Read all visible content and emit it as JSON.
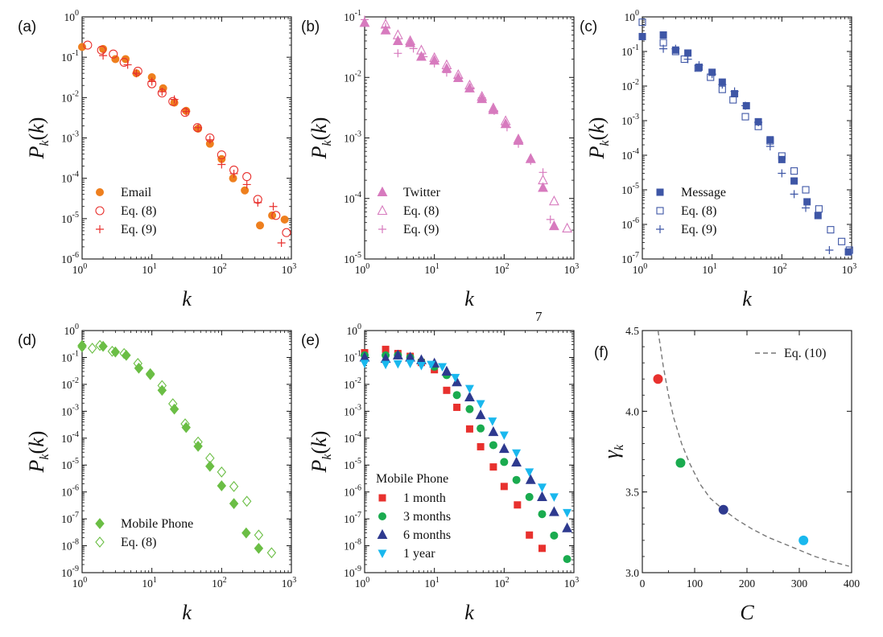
{
  "page_number": "7",
  "chart_data": [
    {
      "id": "a",
      "panel_label": "(a)",
      "type": "scatter",
      "xlabel": "k",
      "ylabel": "P_k(k)",
      "xscale": "log",
      "yscale": "log",
      "xlim": [
        1,
        1000
      ],
      "ylim": [
        1e-06,
        1
      ],
      "x_ticks": [
        [
          1,
          "0"
        ],
        [
          10,
          "1"
        ],
        [
          100,
          "2"
        ],
        [
          1000,
          "3"
        ]
      ],
      "y_ticks": [
        [
          1e-06,
          "-6"
        ],
        [
          1e-05,
          "-5"
        ],
        [
          0.0001,
          "-4"
        ],
        [
          0.001,
          "-3"
        ],
        [
          0.01,
          "-2"
        ],
        [
          0.1,
          "-1"
        ],
        [
          1,
          "0"
        ]
      ],
      "legend_position": "bottom-left",
      "series": [
        {
          "name": "Email",
          "marker": "circle-filled",
          "color": "#EE7F1E",
          "x": [
            1,
            2,
            3,
            4.2,
            6,
            10,
            14.5,
            21,
            31,
            46,
            68,
            100,
            146,
            215,
            355,
            530,
            800
          ],
          "y": [
            0.18,
            0.16,
            0.09,
            0.09,
            0.04,
            0.032,
            0.017,
            0.0075,
            0.0047,
            0.0017,
            0.00072,
            0.0003,
            0.0001,
            5e-05,
            6.8e-06,
            1.2e-05,
            9.5e-06
          ]
        },
        {
          "name": "Eq. (8)",
          "marker": "circle-open",
          "color": "#E8312E",
          "x": [
            1.2,
            1.9,
            2.8,
            4,
            6.3,
            10,
            14,
            20,
            30,
            45,
            68,
            100,
            150,
            230,
            330,
            600,
            850
          ],
          "y": [
            0.2,
            0.15,
            0.12,
            0.075,
            0.045,
            0.022,
            0.013,
            0.008,
            0.0043,
            0.0018,
            0.001,
            0.00038,
            0.00016,
            0.00011,
            3e-05,
            1.2e-05,
            4.5e-06
          ]
        },
        {
          "name": "Eq. (9)",
          "marker": "plus",
          "color": "#E8312E",
          "x": [
            2,
            4.5,
            6,
            10,
            14,
            21,
            31,
            46,
            68,
            100,
            150,
            230,
            330,
            550,
            720
          ],
          "y": [
            0.11,
            0.065,
            0.04,
            0.025,
            0.014,
            0.009,
            0.0045,
            0.0018,
            0.0009,
            0.00022,
            0.00013,
            7e-05,
            2.5e-05,
            2e-05,
            2.5e-06
          ]
        }
      ]
    },
    {
      "id": "b",
      "panel_label": "(b)",
      "type": "scatter",
      "xlabel": "k",
      "ylabel": "P_k(k)",
      "xscale": "log",
      "yscale": "log",
      "xlim": [
        1,
        1000
      ],
      "ylim": [
        1e-05,
        0.1
      ],
      "x_ticks": [
        [
          1,
          "0"
        ],
        [
          10,
          "1"
        ],
        [
          100,
          "2"
        ],
        [
          1000,
          "3"
        ]
      ],
      "y_ticks": [
        [
          1e-05,
          "-5"
        ],
        [
          0.0001,
          "-4"
        ],
        [
          0.001,
          "-3"
        ],
        [
          0.01,
          "-2"
        ],
        [
          0.1,
          "-1"
        ]
      ],
      "legend_position": "bottom-left",
      "series": [
        {
          "name": "Twitter",
          "marker": "triangle-up-filled",
          "color": "#D77ABE",
          "x": [
            1,
            2,
            3,
            4.5,
            6.5,
            10,
            15,
            22,
            32,
            48,
            70,
            105,
            160,
            240,
            360,
            520
          ],
          "y": [
            0.08,
            0.06,
            0.04,
            0.037,
            0.022,
            0.019,
            0.014,
            0.0098,
            0.0066,
            0.0044,
            0.0029,
            0.0017,
            0.0009,
            0.00045,
            0.00015,
            3.5e-05
          ]
        },
        {
          "name": "Eq. (8)",
          "marker": "triangle-up-open",
          "color": "#D77ABE",
          "x": [
            2,
            3,
            4.5,
            6.5,
            10,
            15,
            22,
            32,
            48,
            70,
            105,
            160,
            240,
            360,
            520,
            800
          ],
          "y": [
            0.075,
            0.05,
            0.04,
            0.028,
            0.021,
            0.016,
            0.011,
            0.0074,
            0.0048,
            0.0031,
            0.0019,
            0.00095,
            0.00045,
            0.0002,
            9e-05,
            3.2e-05
          ]
        },
        {
          "name": "Eq. (9)",
          "marker": "plus",
          "color": "#D77ABE",
          "x": [
            1,
            2,
            3,
            5,
            7,
            10,
            15,
            22,
            33,
            48,
            72,
            110,
            160,
            240,
            360,
            460
          ],
          "y": [
            0.09,
            0.068,
            0.025,
            0.03,
            0.022,
            0.017,
            0.012,
            0.0098,
            0.0067,
            0.0046,
            0.0028,
            0.0015,
            0.0008,
            0.00042,
            0.00027,
            4.5e-05
          ]
        }
      ]
    },
    {
      "id": "c",
      "panel_label": "(c)",
      "type": "scatter",
      "xlabel": "k",
      "ylabel": "P_k(k)",
      "xscale": "log",
      "yscale": "log",
      "xlim": [
        1,
        1000
      ],
      "ylim": [
        1e-07,
        1
      ],
      "x_ticks": [
        [
          1,
          "0"
        ],
        [
          10,
          "1"
        ],
        [
          100,
          "2"
        ],
        [
          1000,
          "3"
        ]
      ],
      "y_ticks": [
        [
          1e-07,
          "-7"
        ],
        [
          1e-06,
          "-6"
        ],
        [
          1e-05,
          "-5"
        ],
        [
          0.0001,
          "-4"
        ],
        [
          0.001,
          "-3"
        ],
        [
          0.01,
          "-2"
        ],
        [
          0.1,
          "-1"
        ],
        [
          1,
          "0"
        ]
      ],
      "legend_position": "bottom-left",
      "series": [
        {
          "name": "Message",
          "marker": "square-filled",
          "color": "#3E56A6",
          "x": [
            1,
            2,
            3,
            4.5,
            6.5,
            10,
            14,
            21,
            31,
            46,
            68,
            100,
            150,
            230,
            330,
            900
          ],
          "y": [
            0.27,
            0.3,
            0.11,
            0.09,
            0.035,
            0.025,
            0.013,
            0.006,
            0.0027,
            0.00093,
            0.00028,
            7.5e-05,
            1.8e-05,
            4.5e-06,
            1.8e-06,
            1.6e-07
          ]
        },
        {
          "name": "Eq. (8)",
          "marker": "square-open",
          "color": "#3E56A6",
          "x": [
            1,
            2,
            3,
            4,
            6.3,
            9.5,
            14,
            20,
            30,
            46,
            68,
            100,
            150,
            220,
            340,
            500,
            720,
            930
          ],
          "y": [
            0.7,
            0.18,
            0.1,
            0.06,
            0.033,
            0.018,
            0.008,
            0.004,
            0.0013,
            0.00068,
            0.00026,
            9.5e-05,
            3.5e-05,
            1e-05,
            2.8e-06,
            7e-07,
            3.2e-07,
            1.8e-07
          ]
        },
        {
          "name": "Eq. (9)",
          "marker": "plus",
          "color": "#3E56A6",
          "x": [
            2,
            3,
            4.5,
            6.5,
            10,
            14,
            21,
            30,
            46,
            68,
            100,
            150,
            220,
            480
          ],
          "y": [
            0.12,
            0.12,
            0.06,
            0.04,
            0.022,
            0.011,
            0.007,
            0.0027,
            0.0009,
            0.00018,
            3e-05,
            7.5e-06,
            3e-06,
            1.8e-07
          ]
        }
      ]
    },
    {
      "id": "d",
      "panel_label": "(d)",
      "type": "scatter",
      "xlabel": "k",
      "ylabel": "P_k(k)",
      "xscale": "log",
      "yscale": "log",
      "xlim": [
        1,
        1000
      ],
      "ylim": [
        1e-09,
        1
      ],
      "x_ticks": [
        [
          1,
          "0"
        ],
        [
          10,
          "1"
        ],
        [
          100,
          "2"
        ],
        [
          1000,
          "3"
        ]
      ],
      "y_ticks": [
        [
          1e-09,
          "-9"
        ],
        [
          1e-08,
          "-8"
        ],
        [
          1e-07,
          "-7"
        ],
        [
          1e-06,
          "-6"
        ],
        [
          1e-05,
          "-5"
        ],
        [
          0.0001,
          "-4"
        ],
        [
          0.001,
          "-3"
        ],
        [
          0.01,
          "-2"
        ],
        [
          0.1,
          "-1"
        ],
        [
          1,
          "0"
        ]
      ],
      "legend_position": "bottom-left",
      "series": [
        {
          "name": "Mobile Phone",
          "marker": "diamond-filled",
          "color": "#6BBE45",
          "x": [
            1,
            2,
            3,
            4.3,
            6.5,
            9.5,
            14,
            21,
            31,
            46,
            68,
            100,
            150,
            225,
            340
          ],
          "y": [
            0.28,
            0.26,
            0.16,
            0.12,
            0.04,
            0.023,
            0.006,
            0.0012,
            0.00025,
            5e-05,
            9e-06,
            1.7e-06,
            3.7e-07,
            3e-08,
            8e-09
          ]
        },
        {
          "name": "Eq. (8)",
          "marker": "diamond-open",
          "color": "#6BBE45",
          "x": [
            1,
            1.4,
            1.8,
            2.7,
            4,
            6.3,
            9.5,
            14,
            20,
            30,
            46,
            68,
            100,
            150,
            230,
            340,
            520
          ],
          "y": [
            0.25,
            0.22,
            0.28,
            0.17,
            0.14,
            0.06,
            0.025,
            0.009,
            0.0019,
            0.00034,
            7.2e-05,
            1.8e-05,
            5.5e-06,
            1.6e-06,
            4.5e-07,
            2.5e-08,
            5.5e-09
          ]
        }
      ]
    },
    {
      "id": "e",
      "panel_label": "(e)",
      "type": "scatter",
      "xlabel": "k",
      "ylabel": "P_k(k)",
      "xscale": "log",
      "yscale": "log",
      "xlim": [
        1,
        1000
      ],
      "ylim": [
        1e-09,
        1
      ],
      "x_ticks": [
        [
          1,
          "0"
        ],
        [
          10,
          "1"
        ],
        [
          100,
          "2"
        ],
        [
          1000,
          "3"
        ]
      ],
      "y_ticks": [
        [
          1e-09,
          "-9"
        ],
        [
          1e-08,
          "-8"
        ],
        [
          1e-07,
          "-7"
        ],
        [
          1e-06,
          "-6"
        ],
        [
          1e-05,
          "-5"
        ],
        [
          0.0001,
          "-4"
        ],
        [
          0.001,
          "-3"
        ],
        [
          0.01,
          "-2"
        ],
        [
          0.1,
          "-1"
        ],
        [
          1,
          "0"
        ]
      ],
      "legend_title": "Mobile Phone",
      "legend_position": "bottom-left",
      "series": [
        {
          "name": "1 month",
          "marker": "square-filled",
          "color": "#E8312E",
          "x": [
            1,
            2,
            3,
            4.5,
            6.5,
            10,
            15,
            21,
            32,
            46,
            70,
            100,
            155,
            230,
            350
          ],
          "y": [
            0.15,
            0.2,
            0.14,
            0.11,
            0.065,
            0.035,
            0.006,
            0.0014,
            0.00022,
            4.8e-05,
            8.5e-06,
            1.6e-06,
            3.3e-07,
            2.5e-08,
            8e-09
          ]
        },
        {
          "name": "3 months",
          "marker": "circle-filled",
          "color": "#1AAB4F",
          "x": [
            1,
            2,
            3,
            4.5,
            6.5,
            10,
            15,
            21,
            32,
            46,
            70,
            100,
            150,
            230,
            350,
            520,
            800
          ],
          "y": [
            0.12,
            0.12,
            0.12,
            0.1,
            0.07,
            0.045,
            0.022,
            0.004,
            0.0012,
            0.00023,
            5.5e-05,
            1.3e-05,
            2.8e-06,
            6.5e-07,
            1.5e-07,
            2.4e-08,
            3.2e-09
          ]
        },
        {
          "name": "6 months",
          "marker": "triangle-up-filled",
          "color": "#2E3A8F",
          "x": [
            1,
            2,
            3,
            4.5,
            6.5,
            10,
            15,
            21,
            32,
            46,
            70,
            100,
            150,
            240,
            350,
            520,
            800
          ],
          "y": [
            0.1,
            0.09,
            0.12,
            0.1,
            0.08,
            0.06,
            0.03,
            0.012,
            0.0033,
            0.00072,
            0.00017,
            4e-05,
            1.25e-05,
            2.8e-06,
            6.5e-07,
            1.8e-07,
            4.5e-08
          ]
        },
        {
          "name": "1 year",
          "marker": "triangle-down-filled",
          "color": "#19B8EE",
          "x": [
            1,
            2,
            3,
            4.5,
            6.5,
            9,
            13,
            20,
            32,
            46,
            68,
            100,
            150,
            230,
            350,
            520,
            800
          ],
          "y": [
            0.06,
            0.055,
            0.058,
            0.06,
            0.05,
            0.055,
            0.045,
            0.018,
            0.007,
            0.0019,
            0.00043,
            0.00013,
            2.8e-05,
            5.5e-06,
            1.5e-06,
            6.5e-07,
            1.7e-07
          ]
        }
      ]
    },
    {
      "id": "f",
      "panel_label": "(f)",
      "type": "scatter",
      "xlabel": "C",
      "ylabel": "γ_k",
      "xscale": "linear",
      "yscale": "linear",
      "xlim": [
        0,
        400
      ],
      "ylim": [
        3.0,
        4.5
      ],
      "x_ticks": [
        [
          0,
          "0"
        ],
        [
          100,
          "100"
        ],
        [
          200,
          "200"
        ],
        [
          300,
          "300"
        ],
        [
          400,
          "400"
        ]
      ],
      "y_ticks": [
        [
          3.0,
          "3.0"
        ],
        [
          3.5,
          "3.5"
        ],
        [
          4.0,
          "4.0"
        ],
        [
          4.5,
          "4.5"
        ]
      ],
      "legend_position": "top-right",
      "points": [
        {
          "x": 30,
          "y": 4.2,
          "color": "#E8312E"
        },
        {
          "x": 73,
          "y": 3.68,
          "color": "#1AAB4F"
        },
        {
          "x": 155,
          "y": 3.39,
          "color": "#2E3A8F"
        },
        {
          "x": 308,
          "y": 3.2,
          "color": "#19B8EE"
        }
      ],
      "curve": {
        "name": "Eq. (10)",
        "color": "#777777",
        "dash": true,
        "x": [
          30,
          40,
          50,
          60,
          75,
          90,
          110,
          130,
          155,
          180,
          210,
          240,
          270,
          300,
          330,
          360,
          395
        ],
        "y": [
          4.5,
          4.28,
          4.1,
          3.96,
          3.8,
          3.68,
          3.55,
          3.46,
          3.39,
          3.33,
          3.27,
          3.22,
          3.18,
          3.14,
          3.1,
          3.07,
          3.04
        ]
      }
    }
  ]
}
